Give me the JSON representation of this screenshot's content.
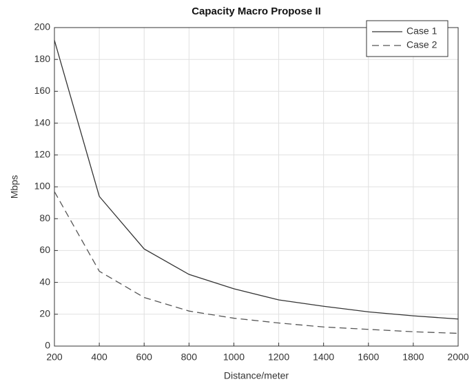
{
  "chart_data": {
    "type": "line",
    "title": "Capacity Macro Propose II",
    "x_label": "Distance/meter",
    "y_label": "Mbps",
    "x": [
      200,
      400,
      600,
      800,
      1000,
      1200,
      1400,
      1600,
      1800,
      2000
    ],
    "series": [
      {
        "name": "Case 1",
        "color": "#333333",
        "line_style": "solid",
        "values": [
          192,
          94,
          61,
          45,
          36,
          29,
          25,
          21.5,
          19,
          17
        ]
      },
      {
        "name": "Case 2",
        "color": "#555555",
        "line_style": "dashed",
        "values": [
          97,
          47,
          30.5,
          22,
          17.5,
          14.5,
          12,
          10.5,
          9,
          8
        ]
      }
    ],
    "xlim": [
      200,
      2000
    ],
    "xticks": [
      200,
      400,
      600,
      800,
      1000,
      1200,
      1400,
      1600,
      1800,
      2000
    ],
    "ylim": [
      0,
      200
    ],
    "yticks": [
      0,
      20,
      40,
      60,
      80,
      100,
      120,
      140,
      160,
      180,
      200
    ],
    "grid": true,
    "legend": "upper-right"
  }
}
